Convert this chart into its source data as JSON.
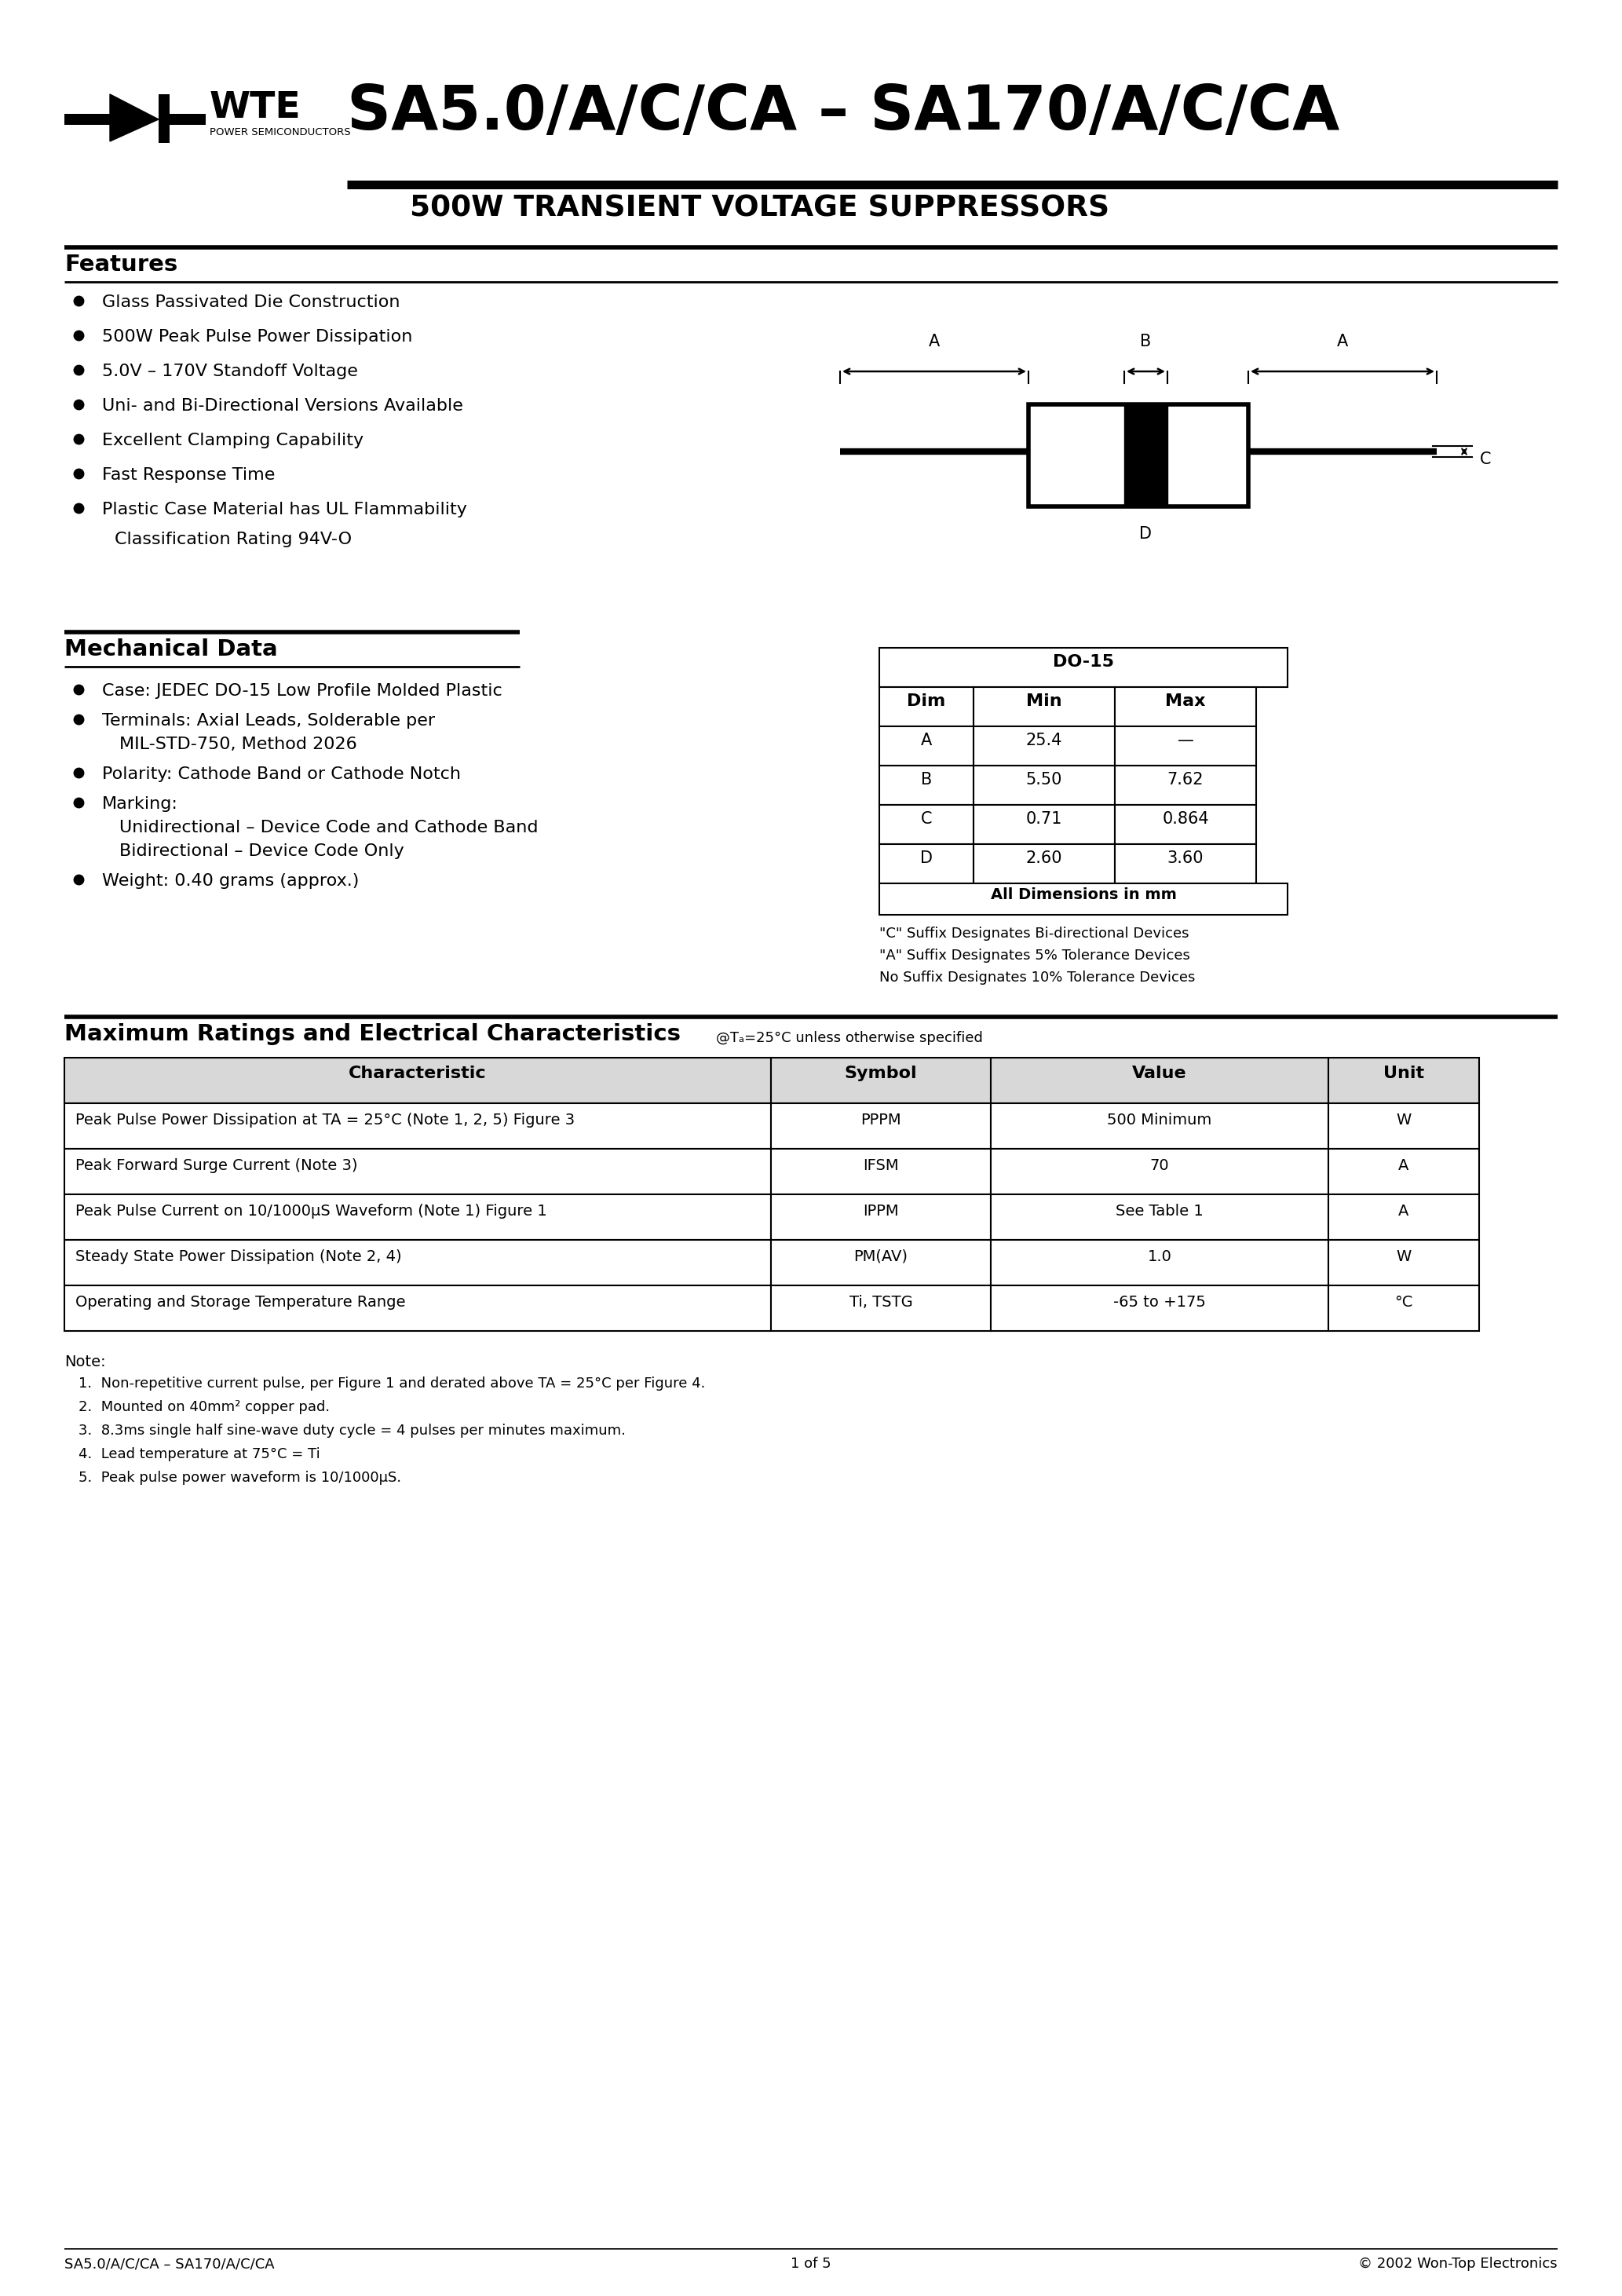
{
  "title_main": "SA5.0/A/C/CA – SA170/A/C/CA",
  "title_sub": "500W TRANSIENT VOLTAGE SUPPRESSORS",
  "company": "WTE",
  "company_sub": "POWER SEMICONDUCTORS",
  "section1_title": "Features",
  "features": [
    "Glass Passivated Die Construction",
    "500W Peak Pulse Power Dissipation",
    "5.0V – 170V Standoff Voltage",
    "Uni- and Bi-Directional Versions Available",
    "Excellent Clamping Capability",
    "Fast Response Time",
    "Plastic Case Material has UL Flammability",
    "Classification Rating 94V-O"
  ],
  "features_bullets": [
    1,
    1,
    1,
    1,
    1,
    1,
    1,
    0
  ],
  "section2_title": "Mechanical Data",
  "mech_features": [
    [
      "Case: JEDEC DO-15 Low Profile Molded Plastic"
    ],
    [
      "Terminals: Axial Leads, Solderable per",
      "MIL-STD-750, Method 2026"
    ],
    [
      "Polarity: Cathode Band or Cathode Notch"
    ],
    [
      "Marking:",
      "Unidirectional – Device Code and Cathode Band",
      "Bidirectional – Device Code Only"
    ],
    [
      "Weight: 0.40 grams (approx.)"
    ]
  ],
  "dim_table_title": "DO-15",
  "dim_table_headers": [
    "Dim",
    "Min",
    "Max"
  ],
  "dim_table_rows": [
    [
      "A",
      "25.4",
      "—"
    ],
    [
      "B",
      "5.50",
      "7.62"
    ],
    [
      "C",
      "0.71",
      "0.864"
    ],
    [
      "D",
      "2.60",
      "3.60"
    ]
  ],
  "dim_table_footer": "All Dimensions in mm",
  "dim_note1": "\"C\" Suffix Designates Bi-directional Devices",
  "dim_note2": "\"A\" Suffix Designates 5% Tolerance Devices",
  "dim_note3": "No Suffix Designates 10% Tolerance Devices",
  "section3_title": "Maximum Ratings and Electrical Characteristics",
  "section3_subtitle": "@Tₐ=25°C unless otherwise specified",
  "char_table_headers": [
    "Characteristic",
    "Symbol",
    "Value",
    "Unit"
  ],
  "char_table_rows": [
    [
      "Peak Pulse Power Dissipation at TA = 25°C (Note 1, 2, 5) Figure 3",
      "PPPM",
      "500 Minimum",
      "W"
    ],
    [
      "Peak Forward Surge Current (Note 3)",
      "IFSM",
      "70",
      "A"
    ],
    [
      "Peak Pulse Current on 10/1000μS Waveform (Note 1) Figure 1",
      "IPPM",
      "See Table 1",
      "A"
    ],
    [
      "Steady State Power Dissipation (Note 2, 4)",
      "PM(AV)",
      "1.0",
      "W"
    ],
    [
      "Operating and Storage Temperature Range",
      "Ti, TSTG",
      "-65 to +175",
      "°C"
    ]
  ],
  "notes_title": "Note:",
  "notes": [
    "1.  Non-repetitive current pulse, per Figure 1 and derated above TA = 25°C per Figure 4.",
    "2.  Mounted on 40mm² copper pad.",
    "3.  8.3ms single half sine-wave duty cycle = 4 pulses per minutes maximum.",
    "4.  Lead temperature at 75°C = Ti",
    "5.  Peak pulse power waveform is 10/1000μS."
  ],
  "footer_left": "SA5.0/A/C/CA – SA170/A/C/CA",
  "footer_center": "1 of 5",
  "footer_right": "© 2002 Won-Top Electronics",
  "bg_color": "#ffffff",
  "text_color": "#000000"
}
